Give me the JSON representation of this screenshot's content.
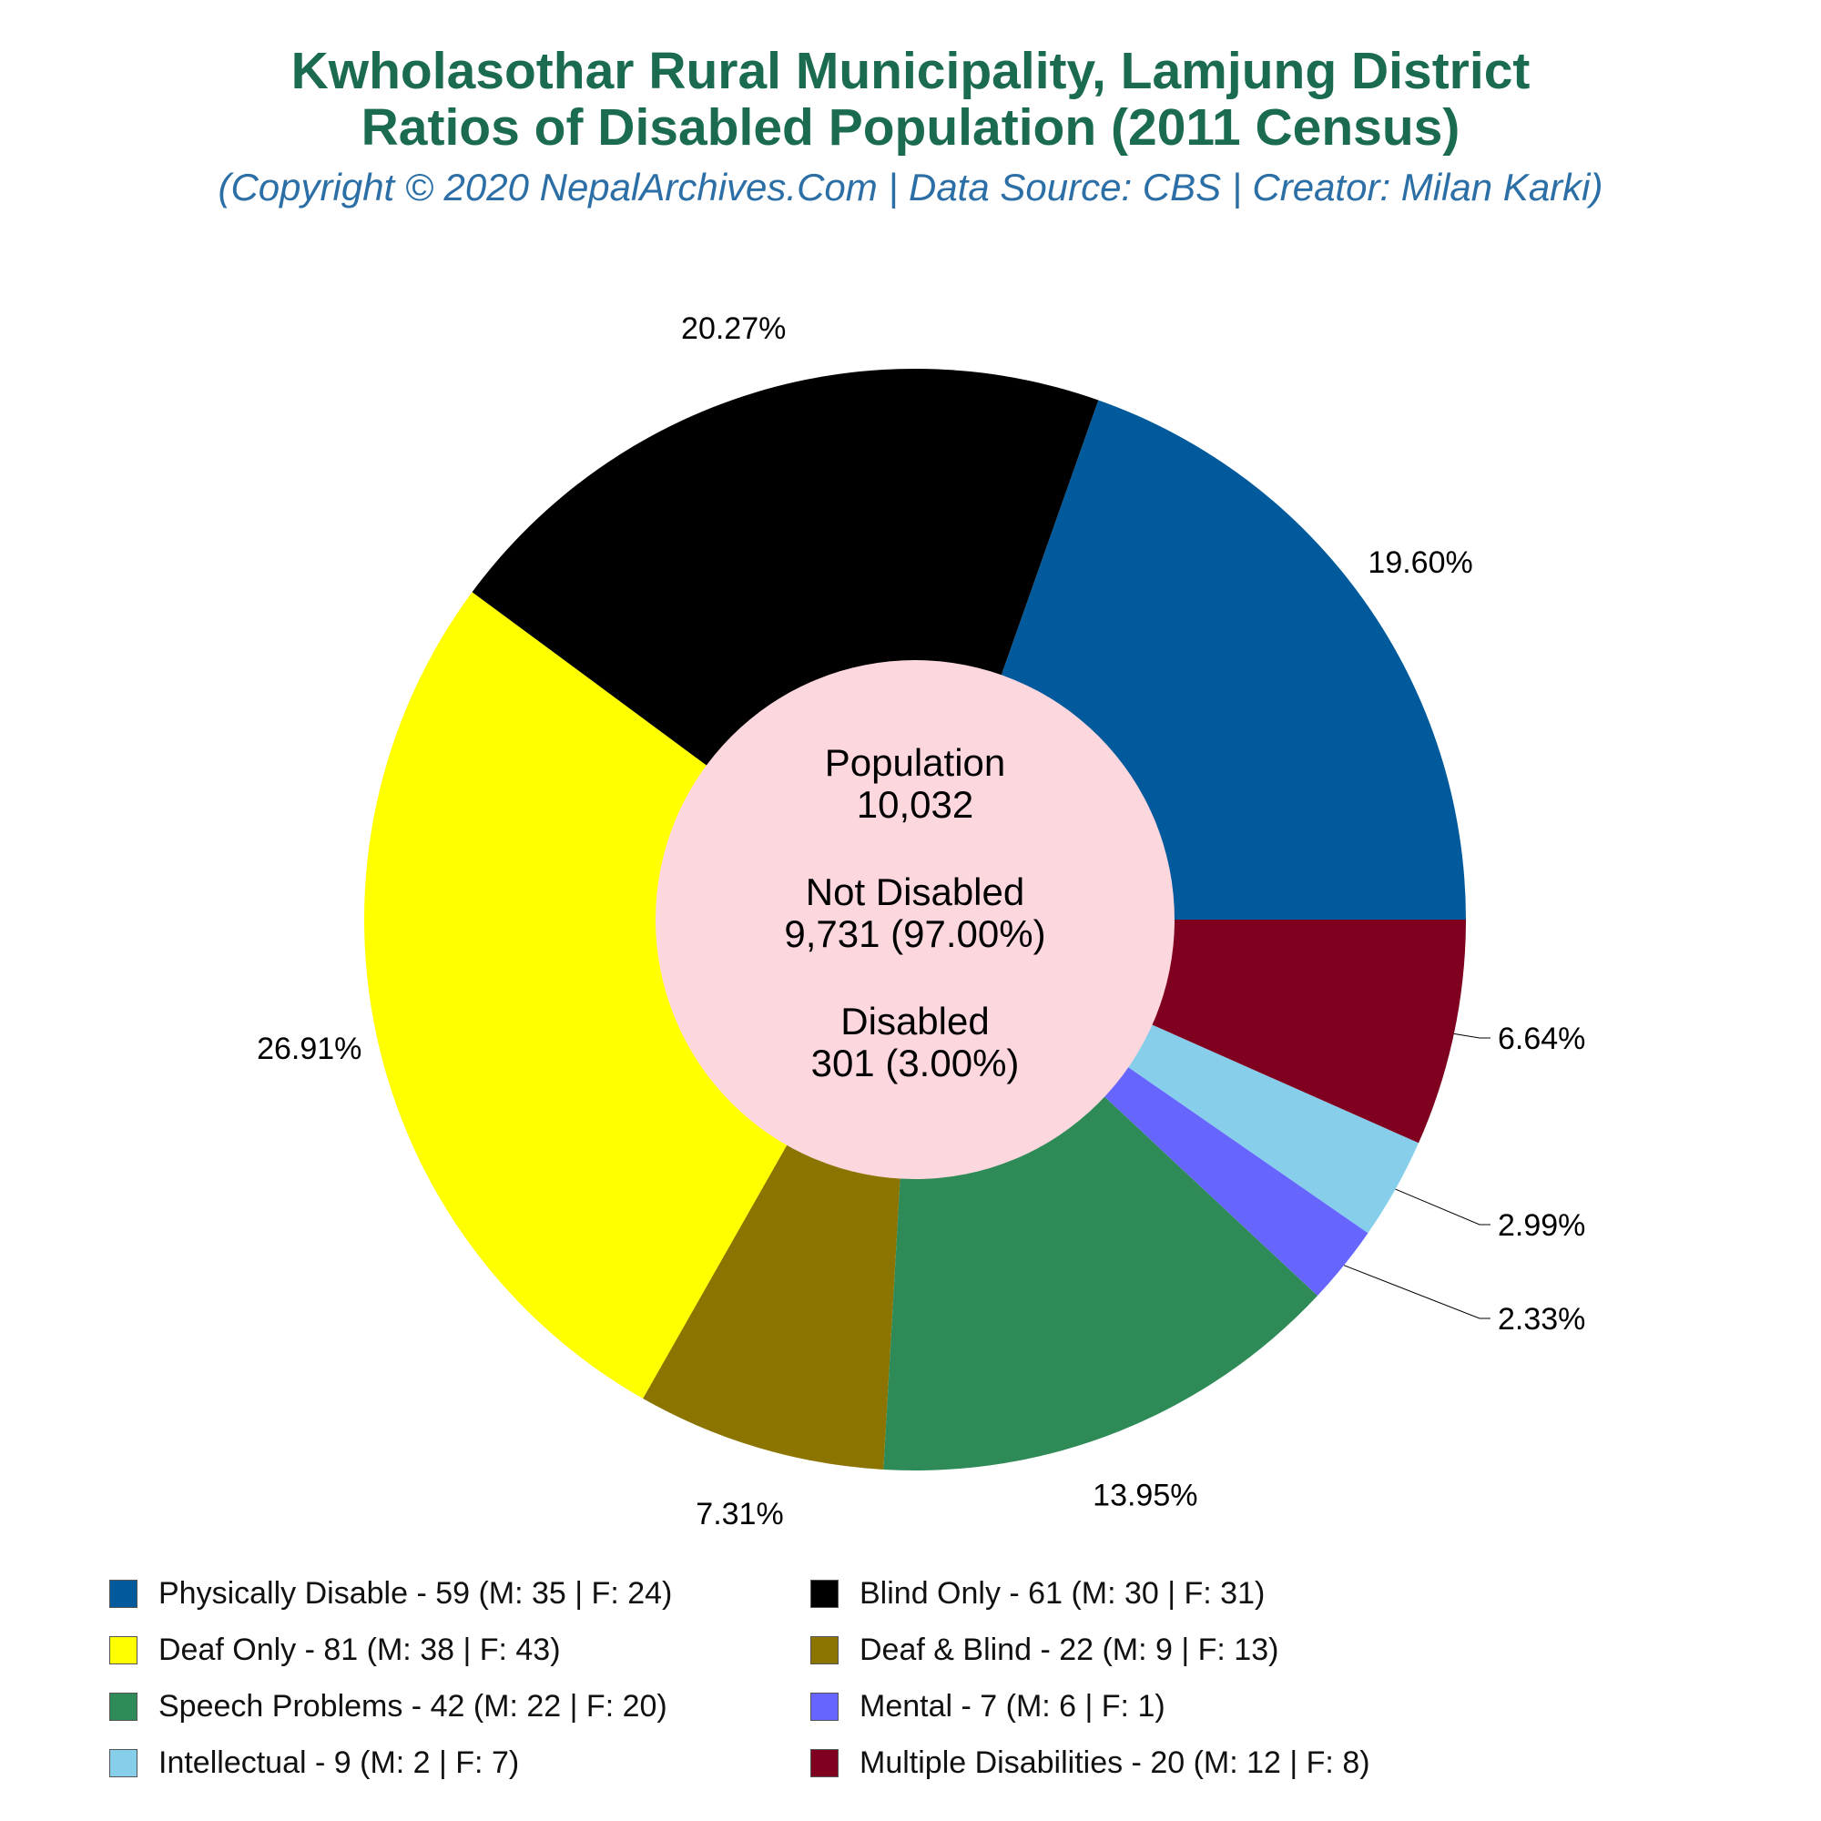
{
  "title_line1": "Kwholasothar Rural Municipality, Lamjung District",
  "title_line2": "Ratios of Disabled Population (2011 Census)",
  "subtitle": "(Copyright © 2020 NepalArchives.Com | Data Source: CBS | Creator: Milan Karki)",
  "center": {
    "pop_label": "Population",
    "pop_value": "10,032",
    "nd_label": "Not Disabled",
    "nd_value": "9,731 (97.00%)",
    "d_label": "Disabled",
    "d_value": "301 (3.00%)",
    "color": "#fcd7de"
  },
  "chart_data": {
    "type": "pie",
    "total": 301,
    "slices": [
      {
        "name": "Physically Disable",
        "value": 59,
        "male": 35,
        "female": 24,
        "pct_label": "19.60%",
        "color": "#005a9c",
        "legend": "Physically Disable - 59 (M: 35 | F: 24)"
      },
      {
        "name": "Blind Only",
        "value": 61,
        "male": 30,
        "female": 31,
        "pct_label": "20.27%",
        "color": "#000000",
        "legend": "Blind Only - 61 (M: 30 | F: 31)"
      },
      {
        "name": "Deaf Only",
        "value": 81,
        "male": 38,
        "female": 43,
        "pct_label": "26.91%",
        "color": "#ffff00",
        "legend": "Deaf Only - 81 (M: 38 | F: 43)"
      },
      {
        "name": "Deaf & Blind",
        "value": 22,
        "male": 9,
        "female": 13,
        "pct_label": "7.31%",
        "color": "#8b7500",
        "legend": "Deaf & Blind - 22 (M: 9 | F: 13)"
      },
      {
        "name": "Speech Problems",
        "value": 42,
        "male": 22,
        "female": 20,
        "pct_label": "13.95%",
        "color": "#2e8b57",
        "legend": "Speech Problems - 42 (M: 22 | F: 20)"
      },
      {
        "name": "Mental",
        "value": 7,
        "male": 6,
        "female": 1,
        "pct_label": "2.33%",
        "color": "#6666ff",
        "legend": "Mental - 7 (M: 6 | F: 1)"
      },
      {
        "name": "Intellectual",
        "value": 9,
        "male": 2,
        "female": 7,
        "pct_label": "2.99%",
        "color": "#87ceeb",
        "legend": "Intellectual - 9 (M: 2 | F: 7)"
      },
      {
        "name": "Multiple Disabilities",
        "value": 20,
        "male": 12,
        "female": 8,
        "pct_label": "6.64%",
        "color": "#800020",
        "legend": "Multiple Disabilities - 20 (M: 12 | F: 8)"
      }
    ],
    "legend_placement": "bottom"
  }
}
